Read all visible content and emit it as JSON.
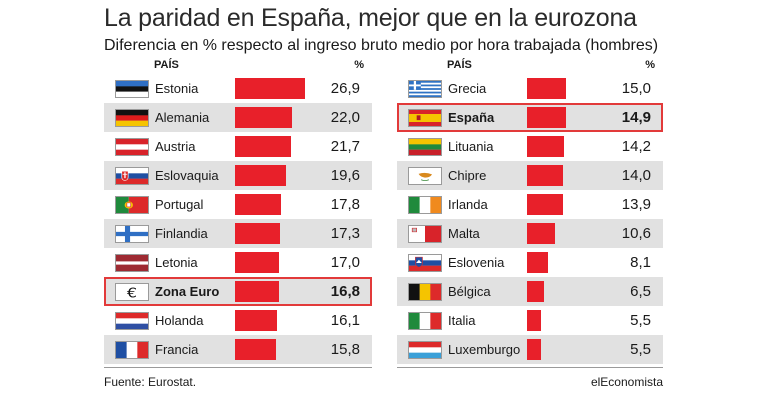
{
  "title": "La paridad en España, mejor que en la eurozona",
  "subtitle": "Diferencia en % respecto al ingreso bruto medio por hora trabajada (hombres)",
  "source": "Fuente: Eurostat.",
  "brand": "elEconomista",
  "colors": {
    "bar": "#e8202a",
    "highlight": "#e23a3a",
    "shade": "#e1e1e1"
  },
  "chart_data": [
    {
      "type": "bar",
      "header_country": "PAÍS",
      "header_value": "%",
      "categories": [
        "Estonia",
        "Alemania",
        "Austria",
        "Eslovaquia",
        "Portugal",
        "Finlandia",
        "Letonia",
        "Zona Euro",
        "Holanda",
        "Francia"
      ],
      "values": [
        26.9,
        22.0,
        21.7,
        19.6,
        17.8,
        17.3,
        17.0,
        16.8,
        16.1,
        15.8
      ],
      "labels": [
        "26,9",
        "22,0",
        "21,7",
        "19,6",
        "17,8",
        "17,3",
        "17,0",
        "16,8",
        "16,1",
        "15,8"
      ],
      "flags": [
        "estonia-flag-icon",
        "germany-flag-icon",
        "austria-flag-icon",
        "slovakia-flag-icon",
        "portugal-flag-icon",
        "finland-flag-icon",
        "latvia-flag-icon",
        "euro-sign-icon",
        "netherlands-flag-icon",
        "france-flag-icon"
      ],
      "highlight": "Zona Euro"
    },
    {
      "type": "bar",
      "header_country": "PAÍS",
      "header_value": "%",
      "categories": [
        "Grecia",
        "España",
        "Lituania",
        "Chipre",
        "Irlanda",
        "Malta",
        "Eslovenia",
        "Bélgica",
        "Italia",
        "Luxemburgo"
      ],
      "values": [
        15.0,
        14.9,
        14.2,
        14.0,
        13.9,
        10.6,
        8.1,
        6.5,
        5.5,
        5.5
      ],
      "labels": [
        "15,0",
        "14,9",
        "14,2",
        "14,0",
        "13,9",
        "10,6",
        "8,1",
        "6,5",
        "5,5",
        "5,5"
      ],
      "flags": [
        "greece-flag-icon",
        "spain-flag-icon",
        "lithuania-flag-icon",
        "cyprus-flag-icon",
        "ireland-flag-icon",
        "malta-flag-icon",
        "slovenia-flag-icon",
        "belgium-flag-icon",
        "italy-flag-icon",
        "luxembourg-flag-icon"
      ],
      "highlight": "España"
    }
  ]
}
